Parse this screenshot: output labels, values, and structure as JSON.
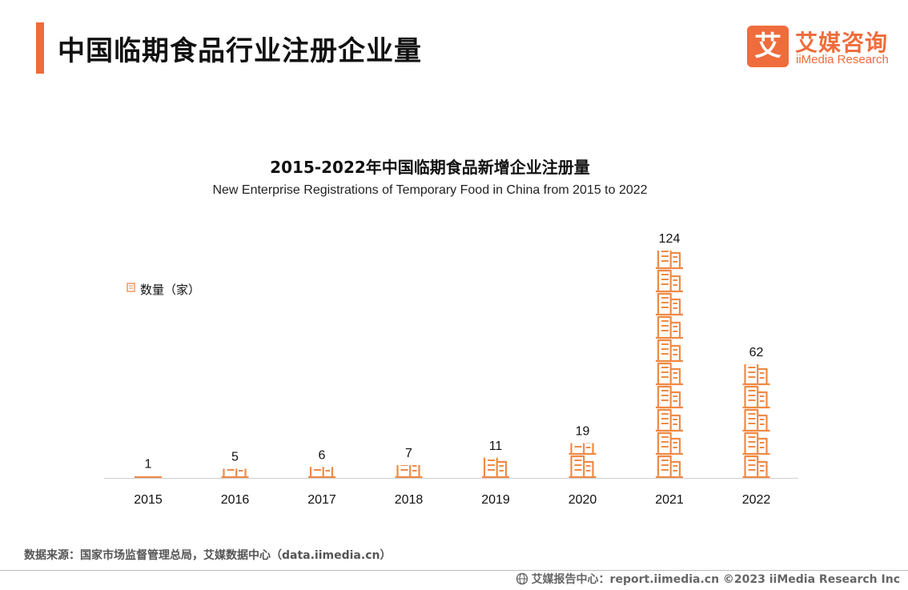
{
  "header": {
    "title": "中国临期食品行业注册企业量",
    "accent_color": "#ef6c3c"
  },
  "logo": {
    "mark": "艾",
    "name_cn": "艾媒咨询",
    "name_en": "iiMedia Research"
  },
  "chart_data": {
    "type": "bar",
    "title": "2015-2022年中国临期食品新增企业注册量",
    "subtitle": "New Enterprise Registrations of Temporary Food in China from 2015 to 2022",
    "categories": [
      "2015",
      "2016",
      "2017",
      "2018",
      "2019",
      "2020",
      "2021",
      "2022"
    ],
    "series": [
      {
        "name": "数量（家）",
        "values": [
          1,
          5,
          6,
          7,
          11,
          19,
          124,
          62
        ],
        "color": "#ef8a46",
        "icon": "building-icon"
      }
    ],
    "xlabel": "",
    "ylabel": "",
    "ylim": [
      0,
      124
    ],
    "grid": false,
    "axis_visible": false,
    "legend_position": "upper-left",
    "data_labels": true
  },
  "source": "数据来源：国家市场监督管理总局，艾媒数据中心（data.iimedia.cn）",
  "footer": {
    "icon": "globe-icon",
    "text": "艾媒报告中心：report.iimedia.cn ©2023 iiMedia Research Inc"
  }
}
